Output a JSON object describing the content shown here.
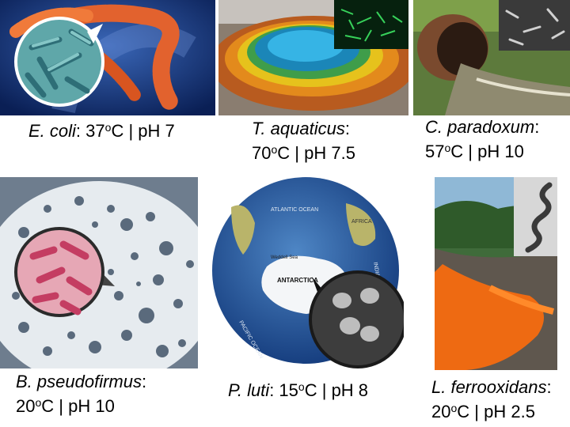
{
  "organisms": [
    {
      "species": "E. coli",
      "temperature": "37",
      "degree": "o",
      "unit": "C",
      "separator": "|",
      "ph": "pH 7"
    },
    {
      "species": "T. aquaticus",
      "temperature": "70",
      "degree": "o",
      "unit": "C",
      "separator": "|",
      "ph": "pH 7.5"
    },
    {
      "species": "C. paradoxum",
      "temperature": "57",
      "degree": "o",
      "unit": "C",
      "separator": "|",
      "ph": "pH 10"
    },
    {
      "species": "B. pseudofirmus",
      "temperature": "20",
      "degree": "o",
      "unit": "C",
      "separator": "|",
      "ph": "pH 10"
    },
    {
      "species": "P. luti",
      "temperature": "15",
      "degree": "o",
      "unit": "C",
      "separator": "|",
      "ph": "pH 8"
    },
    {
      "species": "L. ferrooxidans",
      "temperature": "20",
      "degree": "o",
      "unit": "C",
      "separator": "|",
      "ph": "pH 2.5"
    }
  ],
  "map_labels": {
    "ocean_atlantic": "ATLANTIC OCEAN",
    "ocean_pacific": "PACIFIC OCEAN",
    "ocean_indian": "INDIAN OCEAN",
    "continent_antarctica": "ANTARCTICA",
    "continent_africa": "AFRICA",
    "weddell": "Weddell Sea"
  },
  "colors": {
    "caption_text": "#000000",
    "background": "#ffffff"
  }
}
